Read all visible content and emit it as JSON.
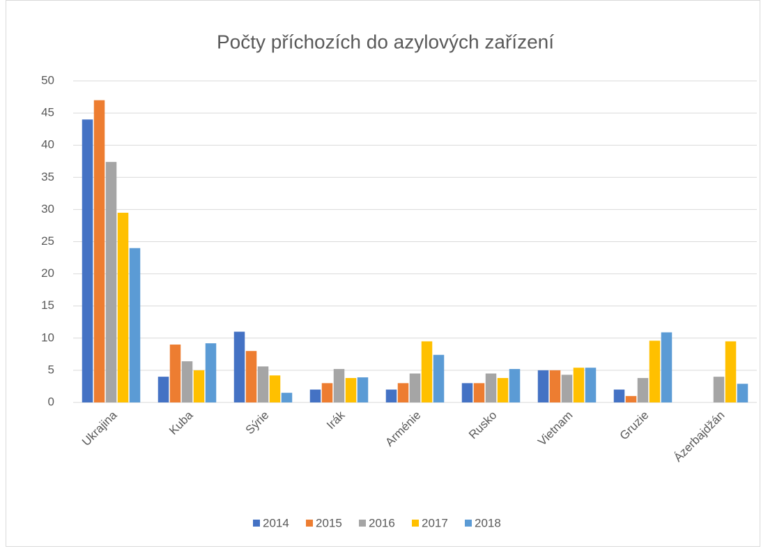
{
  "chart_data": {
    "type": "bar",
    "title": "Počty příchozích do azylových zařízení",
    "categories": [
      "Ukrajina",
      "Kuba",
      "Sýrie",
      "Irák",
      "Arménie",
      "Rusko",
      "Vietnam",
      "Gruzie",
      "Ázerbajdžán"
    ],
    "series": [
      {
        "name": "2014",
        "color": "#4472c4",
        "values": [
          44,
          4,
          11,
          2,
          2,
          3,
          5,
          2,
          null
        ]
      },
      {
        "name": "2015",
        "color": "#ed7d31",
        "values": [
          47,
          9,
          8,
          3,
          3,
          3,
          5,
          1,
          null
        ]
      },
      {
        "name": "2016",
        "color": "#a5a5a5",
        "values": [
          37.4,
          6.4,
          5.6,
          5.2,
          4.5,
          4.5,
          4.3,
          3.8,
          4
        ]
      },
      {
        "name": "2017",
        "color": "#ffc000",
        "values": [
          29.5,
          5,
          4.2,
          3.8,
          9.5,
          3.8,
          5.4,
          9.6,
          9.5
        ]
      },
      {
        "name": "2018",
        "color": "#5b9bd5",
        "values": [
          24,
          9.2,
          1.5,
          3.9,
          7.4,
          5.2,
          5.4,
          10.9,
          2.9
        ]
      }
    ],
    "ylim": [
      0,
      50
    ],
    "yticks": [
      0,
      5,
      10,
      15,
      20,
      25,
      30,
      35,
      40,
      45,
      50
    ],
    "grid": true,
    "legend": "bottom"
  }
}
